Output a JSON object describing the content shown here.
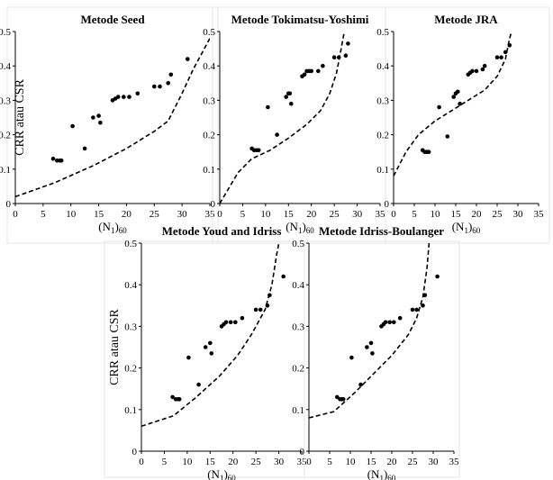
{
  "chart_data": [
    {
      "type": "scatter",
      "title": "Metode Seed",
      "xlabel": "(N1)60",
      "ylabel": "CRR atau CSR",
      "xlim": [
        0,
        35
      ],
      "ylim": [
        0,
        0.5
      ],
      "xticks": [
        0,
        5,
        10,
        15,
        20,
        25,
        30,
        35
      ],
      "yticks": [
        0,
        0.1,
        0.2,
        0.3,
        0.4,
        0.5
      ],
      "points": [
        [
          6.8,
          0.13
        ],
        [
          7.5,
          0.125
        ],
        [
          8,
          0.125
        ],
        [
          8.3,
          0.125
        ],
        [
          10.3,
          0.225
        ],
        [
          12.5,
          0.16
        ],
        [
          14,
          0.25
        ],
        [
          15,
          0.255
        ],
        [
          15.3,
          0.235
        ],
        [
          17.5,
          0.3
        ],
        [
          18,
          0.305
        ],
        [
          18.5,
          0.31
        ],
        [
          19.5,
          0.31
        ],
        [
          20.5,
          0.31
        ],
        [
          22,
          0.32
        ],
        [
          25,
          0.34
        ],
        [
          26,
          0.34
        ],
        [
          27.5,
          0.35
        ],
        [
          28,
          0.375
        ],
        [
          31,
          0.42
        ]
      ],
      "curve": [
        [
          0,
          0.02
        ],
        [
          7,
          0.06
        ],
        [
          14,
          0.11
        ],
        [
          20,
          0.16
        ],
        [
          25,
          0.21
        ],
        [
          27.5,
          0.24
        ],
        [
          30,
          0.32
        ],
        [
          32,
          0.39
        ],
        [
          35,
          0.48
        ]
      ]
    },
    {
      "type": "scatter",
      "title": "Metode Tokimatsu-Yoshimi",
      "xlabel": "(N1)60",
      "ylabel": "",
      "xlim": [
        0,
        35
      ],
      "ylim": [
        0,
        0.5
      ],
      "xticks": [
        0,
        5,
        10,
        15,
        20,
        25,
        30,
        35
      ],
      "yticks": [
        0,
        0.1,
        0.2,
        0.3,
        0.4,
        0.5
      ],
      "points": [
        [
          7,
          0.16
        ],
        [
          7.5,
          0.155
        ],
        [
          8,
          0.155
        ],
        [
          8.5,
          0.155
        ],
        [
          10.5,
          0.28
        ],
        [
          12.5,
          0.2
        ],
        [
          14.5,
          0.31
        ],
        [
          15,
          0.32
        ],
        [
          15.3,
          0.32
        ],
        [
          15.6,
          0.29
        ],
        [
          18,
          0.37
        ],
        [
          18.5,
          0.375
        ],
        [
          19,
          0.385
        ],
        [
          19.5,
          0.385
        ],
        [
          20,
          0.385
        ],
        [
          21.5,
          0.385
        ],
        [
          22.5,
          0.4
        ],
        [
          25,
          0.425
        ],
        [
          26,
          0.425
        ],
        [
          27.5,
          0.43
        ],
        [
          28,
          0.465
        ]
      ],
      "curve": [
        [
          0,
          0
        ],
        [
          4,
          0.09
        ],
        [
          7,
          0.13
        ],
        [
          11,
          0.155
        ],
        [
          15,
          0.19
        ],
        [
          19,
          0.23
        ],
        [
          22,
          0.27
        ],
        [
          24,
          0.32
        ],
        [
          25.5,
          0.38
        ],
        [
          26.5,
          0.45
        ],
        [
          27.2,
          0.5
        ]
      ]
    },
    {
      "type": "scatter",
      "title": "Metode JRA",
      "xlabel": "(N1)60",
      "ylabel": "",
      "xlim": [
        0,
        35
      ],
      "ylim": [
        0,
        0.5
      ],
      "xticks": [
        0,
        5,
        10,
        15,
        20,
        25,
        30,
        35
      ],
      "yticks": [
        0,
        0.1,
        0.2,
        0.3,
        0.4,
        0.5
      ],
      "points": [
        [
          7,
          0.155
        ],
        [
          7.5,
          0.15
        ],
        [
          8,
          0.15
        ],
        [
          8.5,
          0.15
        ],
        [
          11,
          0.28
        ],
        [
          13,
          0.195
        ],
        [
          14.5,
          0.31
        ],
        [
          15,
          0.32
        ],
        [
          15.5,
          0.325
        ],
        [
          16,
          0.29
        ],
        [
          18,
          0.375
        ],
        [
          18.5,
          0.38
        ],
        [
          19,
          0.385
        ],
        [
          20,
          0.385
        ],
        [
          21.5,
          0.39
        ],
        [
          22,
          0.4
        ],
        [
          25,
          0.425
        ],
        [
          26,
          0.425
        ],
        [
          27,
          0.44
        ],
        [
          28,
          0.46
        ]
      ],
      "curve": [
        [
          0,
          0.08
        ],
        [
          3,
          0.15
        ],
        [
          6,
          0.2
        ],
        [
          10,
          0.24
        ],
        [
          14,
          0.27
        ],
        [
          18,
          0.3
        ],
        [
          22,
          0.33
        ],
        [
          25,
          0.37
        ],
        [
          27,
          0.42
        ],
        [
          28,
          0.48
        ],
        [
          28.5,
          0.5
        ]
      ]
    },
    {
      "type": "scatter",
      "title": "Metode Youd and Idriss",
      "xlabel": "(N1)60",
      "ylabel": "CRR atau CSR",
      "xlim": [
        0,
        35
      ],
      "ylim": [
        0,
        0.5
      ],
      "xticks": [
        0,
        5,
        10,
        15,
        20,
        25,
        30,
        35
      ],
      "yticks": [
        0,
        0.1,
        0.2,
        0.3,
        0.4,
        0.5
      ],
      "points": [
        [
          6.8,
          0.13
        ],
        [
          7.5,
          0.125
        ],
        [
          8,
          0.125
        ],
        [
          8.3,
          0.125
        ],
        [
          10.3,
          0.225
        ],
        [
          12.5,
          0.16
        ],
        [
          14,
          0.25
        ],
        [
          15,
          0.26
        ],
        [
          15.3,
          0.235
        ],
        [
          17.5,
          0.3
        ],
        [
          18,
          0.305
        ],
        [
          18.5,
          0.31
        ],
        [
          19.5,
          0.31
        ],
        [
          20.5,
          0.31
        ],
        [
          22,
          0.32
        ],
        [
          25,
          0.34
        ],
        [
          26,
          0.34
        ],
        [
          27.5,
          0.35
        ],
        [
          28,
          0.375
        ],
        [
          31,
          0.42
        ]
      ],
      "curve": [
        [
          0,
          0.06
        ],
        [
          7,
          0.085
        ],
        [
          12,
          0.13
        ],
        [
          17,
          0.18
        ],
        [
          21,
          0.23
        ],
        [
          24,
          0.28
        ],
        [
          27,
          0.34
        ],
        [
          28.5,
          0.4
        ],
        [
          29.5,
          0.47
        ],
        [
          30,
          0.5
        ]
      ]
    },
    {
      "type": "scatter",
      "title": "Metode Idriss-Boulanger",
      "xlabel": "(N1)60",
      "ylabel": "",
      "xlim": [
        0,
        35
      ],
      "ylim": [
        0,
        0.5
      ],
      "xticks": [
        0,
        5,
        10,
        15,
        20,
        25,
        30,
        35
      ],
      "yticks": [
        0,
        0.1,
        0.2,
        0.3,
        0.4,
        0.5
      ],
      "points": [
        [
          6.8,
          0.13
        ],
        [
          7.5,
          0.125
        ],
        [
          8,
          0.125
        ],
        [
          8.3,
          0.125
        ],
        [
          10.3,
          0.225
        ],
        [
          12.5,
          0.16
        ],
        [
          14,
          0.25
        ],
        [
          15,
          0.26
        ],
        [
          15.3,
          0.235
        ],
        [
          17.5,
          0.3
        ],
        [
          18,
          0.305
        ],
        [
          18.5,
          0.31
        ],
        [
          19.5,
          0.31
        ],
        [
          20.5,
          0.31
        ],
        [
          22,
          0.32
        ],
        [
          25,
          0.34
        ],
        [
          26,
          0.34
        ],
        [
          27.5,
          0.35
        ],
        [
          28,
          0.375
        ],
        [
          31,
          0.42
        ]
      ],
      "curve": [
        [
          0,
          0.08
        ],
        [
          6,
          0.095
        ],
        [
          11,
          0.14
        ],
        [
          16,
          0.19
        ],
        [
          20,
          0.23
        ],
        [
          24,
          0.28
        ],
        [
          26,
          0.32
        ],
        [
          27.5,
          0.37
        ],
        [
          28.5,
          0.44
        ],
        [
          29,
          0.5
        ]
      ]
    }
  ]
}
